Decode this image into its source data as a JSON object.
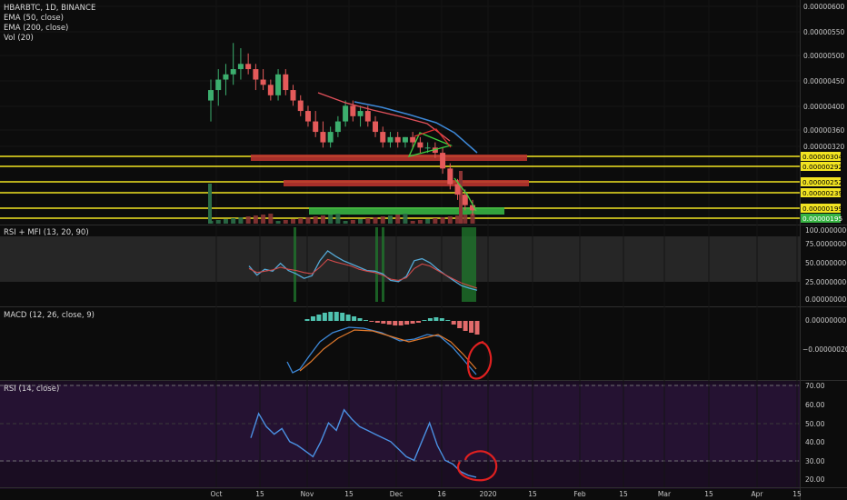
{
  "main_legend": {
    "symbol_line": "HBARBTC, 1D, BINANCE",
    "ema50": "EMA (50, close)",
    "ema200": "EMA (200, close)",
    "vol": "Vol (20)"
  },
  "rsi_mfi_legend": "RSI + MFI (13, 20, 90)",
  "macd_legend": "MACD (12, 26, close, 9)",
  "rsi_legend": "RSI (14, close)",
  "price_axis": [
    "0.00000600",
    "0.00000550",
    "0.00000500",
    "0.00000450",
    "0.00000400",
    "0.00000360",
    "0.00000320"
  ],
  "price_levels": [
    "0.00000304",
    "0.00000292",
    "0.00000252",
    "0.00000239",
    "0.00000199",
    "0.00000195"
  ],
  "rsi_mfi_axis": [
    "100.00000000",
    "75.00000000",
    "50.00000000",
    "25.00000000",
    "0.00000000"
  ],
  "macd_axis": [
    "0.00000000",
    "−0.00000020"
  ],
  "rsi_axis": [
    "70.00",
    "60.00",
    "50.00",
    "40.00",
    "30.00",
    "20.00"
  ],
  "time_axis": [
    "Oct",
    "15",
    "Nov",
    "15",
    "Dec",
    "16",
    "2020",
    "15",
    "Feb",
    "15",
    "Mar",
    "15",
    "Apr",
    "15"
  ],
  "colors": {
    "up": "#3cae6e",
    "down": "#e45a5a",
    "ema50": "#e0505a",
    "ema200": "#3d88d8",
    "level_yellow": "#f2e422",
    "zone_red": "#b8332d",
    "zone_green": "#36b342",
    "rsi_line": "#4a90e2",
    "annotation": "#e02020"
  },
  "chart_data": [
    {
      "type": "candlestick",
      "pair": "HBARBTC",
      "interval": "1D",
      "exchange": "BINANCE",
      "ylim": [
        1.95e-06,
        6e-06
      ],
      "ohlc_approx": [
        [
          4.2e-06,
          4.6e-06,
          3.8e-06,
          4.4e-06
        ],
        [
          4.4e-06,
          4.8e-06,
          4.1e-06,
          4.6e-06
        ],
        [
          4.6e-06,
          4.9e-06,
          4.3e-06,
          4.7e-06
        ],
        [
          4.7e-06,
          5.3e-06,
          4.5e-06,
          4.8e-06
        ],
        [
          4.8e-06,
          5.2e-06,
          4.6e-06,
          4.9e-06
        ],
        [
          4.9e-06,
          5.1e-06,
          4.7e-06,
          4.8e-06
        ],
        [
          4.8e-06,
          4.9e-06,
          4.4e-06,
          4.6e-06
        ],
        [
          4.6e-06,
          4.8e-06,
          4.4e-06,
          4.5e-06
        ],
        [
          4.5e-06,
          4.6e-06,
          4.2e-06,
          4.3e-06
        ],
        [
          4.3e-06,
          4.8e-06,
          4.2e-06,
          4.7e-06
        ],
        [
          4.7e-06,
          4.8e-06,
          4.3e-06,
          4.4e-06
        ],
        [
          4.4e-06,
          4.5e-06,
          4.1e-06,
          4.2e-06
        ],
        [
          4.2e-06,
          4.3e-06,
          3.9e-06,
          4e-06
        ],
        [
          4e-06,
          4.1e-06,
          3.7e-06,
          3.8e-06
        ],
        [
          3.8e-06,
          4e-06,
          3.5e-06,
          3.6e-06
        ],
        [
          3.6e-06,
          3.8e-06,
          3.3e-06,
          3.4e-06
        ],
        [
          3.4e-06,
          3.7e-06,
          3.3e-06,
          3.6e-06
        ],
        [
          3.6e-06,
          3.9e-06,
          3.5e-06,
          3.8e-06
        ],
        [
          3.8e-06,
          4.2e-06,
          3.7e-06,
          4.1e-06
        ],
        [
          4.1e-06,
          4.2e-06,
          3.8e-06,
          3.9e-06
        ],
        [
          3.9e-06,
          4.1e-06,
          3.7e-06,
          4e-06
        ],
        [
          4e-06,
          4.1e-06,
          3.7e-06,
          3.8e-06
        ],
        [
          3.8e-06,
          3.9e-06,
          3.5e-06,
          3.6e-06
        ],
        [
          3.6e-06,
          3.7e-06,
          3.3e-06,
          3.4e-06
        ],
        [
          3.4e-06,
          3.6e-06,
          3.3e-06,
          3.5e-06
        ],
        [
          3.5e-06,
          3.6e-06,
          3.3e-06,
          3.4e-06
        ],
        [
          3.4e-06,
          3.5e-06,
          3.3e-06,
          3.5e-06
        ],
        [
          3.5e-06,
          3.6e-06,
          3.3e-06,
          3.4e-06
        ],
        [
          3.4e-06,
          3.5e-06,
          3.2e-06,
          3.3e-06
        ],
        [
          3.3e-06,
          3.4e-06,
          3.2e-06,
          3.3e-06
        ],
        [
          3.3e-06,
          3.4e-06,
          3.1e-06,
          3.2e-06
        ],
        [
          3.2e-06,
          3.3e-06,
          2.8e-06,
          2.9e-06
        ],
        [
          2.9e-06,
          3e-06,
          2.5e-06,
          2.6e-06
        ],
        [
          2.6e-06,
          2.7e-06,
          2.3e-06,
          2.4e-06
        ],
        [
          2.4e-06,
          2.5e-06,
          2.1e-06,
          2.2e-06
        ],
        [
          2.2e-06,
          2.3e-06,
          2e-06,
          2.1e-06
        ]
      ]
    },
    {
      "type": "line",
      "name": "RSI + MFI (13, 20, 90)",
      "ylim": [
        0,
        100
      ],
      "series": [
        {
          "values": [
            52,
            38,
            47,
            44,
            56,
            45,
            40,
            33,
            37,
            60,
            75,
            67,
            60,
            55,
            50,
            45,
            44,
            40,
            30,
            28,
            36,
            60,
            63,
            57,
            47,
            38,
            30,
            22,
            18,
            15
          ]
        },
        {
          "values": [
            48,
            42,
            44,
            46,
            50,
            47,
            45,
            42,
            40,
            50,
            62,
            58,
            55,
            52,
            47,
            44,
            42,
            38,
            32,
            30,
            34,
            48,
            55,
            52,
            45,
            38,
            32,
            26,
            22,
            18
          ]
        }
      ]
    },
    {
      "type": "bar",
      "name": "MACD (12, 26, close, 9)",
      "values": [
        0.2,
        0.5,
        0.7,
        0.9,
        1.0,
        1.0,
        0.9,
        0.7,
        0.5,
        0.3,
        0.1,
        -0.1,
        -0.2,
        -0.3,
        -0.4,
        -0.5,
        -0.5,
        -0.4,
        -0.3,
        -0.2,
        0.1,
        0.3,
        0.4,
        0.3,
        0.1,
        -0.4,
        -0.8,
        -1.1,
        -1.3,
        -1.5
      ]
    },
    {
      "type": "line",
      "name": "RSI (14, close)",
      "ylim": [
        18,
        72
      ],
      "values": [
        42,
        55,
        48,
        44,
        47,
        40,
        38,
        35,
        32,
        40,
        50,
        46,
        57,
        52,
        48,
        46,
        44,
        42,
        40,
        36,
        32,
        30,
        40,
        50,
        38,
        30,
        28,
        24,
        22,
        21
      ]
    }
  ]
}
